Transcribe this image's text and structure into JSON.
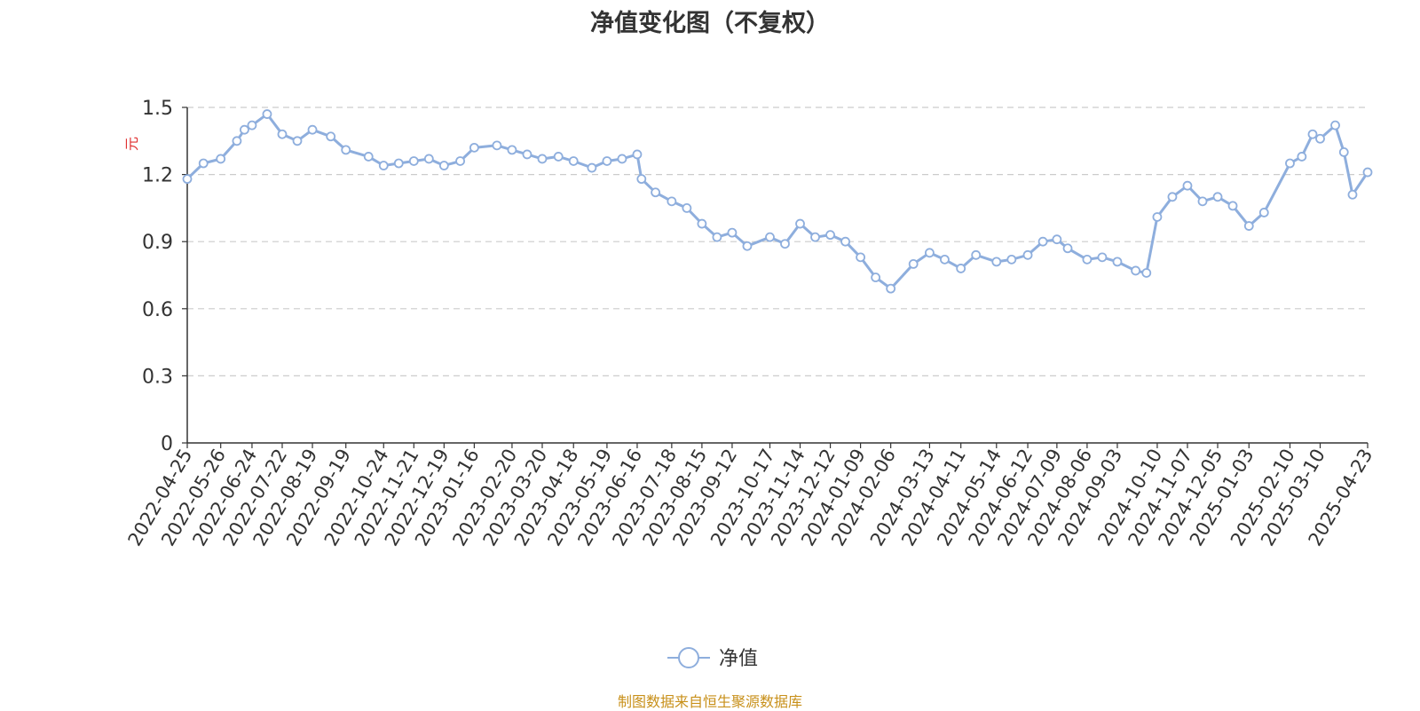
{
  "chart_data": {
    "type": "line",
    "title": "净值变化图（不复权）",
    "ylabel": "元",
    "xlabel": "",
    "ylim": [
      0,
      1.5
    ],
    "yticks": [
      "0",
      "0.3",
      "0.6",
      "0.9",
      "1.2",
      "1.5"
    ],
    "grid": true,
    "legend_position": "bottom-center",
    "x_tick_labels": [
      "2022-04-25",
      "2022-05-26",
      "2022-06-24",
      "2022-07-22",
      "2022-08-19",
      "2022-09-19",
      "2022-10-24",
      "2022-11-21",
      "2022-12-19",
      "2023-01-16",
      "2023-02-20",
      "2023-03-20",
      "2023-04-18",
      "2023-05-19",
      "2023-06-16",
      "2023-07-18",
      "2023-08-15",
      "2023-09-12",
      "2023-10-17",
      "2023-11-14",
      "2023-12-12",
      "2024-01-09",
      "2024-02-06",
      "2024-03-13",
      "2024-04-11",
      "2024-05-14",
      "2024-06-12",
      "2024-07-09",
      "2024-08-06",
      "2024-09-03",
      "2024-10-10",
      "2024-11-07",
      "2024-12-05",
      "2025-01-03",
      "2025-02-10",
      "2025-03-10",
      "2025-04-23"
    ],
    "series": [
      {
        "name": "净值",
        "color": "#8eaedd",
        "x": [
          "2022-04-25",
          "2022-05-10",
          "2022-05-26",
          "2022-06-10",
          "2022-06-17",
          "2022-06-24",
          "2022-07-08",
          "2022-07-22",
          "2022-08-05",
          "2022-08-19",
          "2022-09-05",
          "2022-09-19",
          "2022-10-10",
          "2022-10-24",
          "2022-11-07",
          "2022-11-21",
          "2022-12-05",
          "2022-12-19",
          "2023-01-03",
          "2023-01-16",
          "2023-02-06",
          "2023-02-20",
          "2023-03-06",
          "2023-03-20",
          "2023-04-04",
          "2023-04-18",
          "2023-05-05",
          "2023-05-19",
          "2023-06-02",
          "2023-06-16",
          "2023-06-20",
          "2023-07-03",
          "2023-07-18",
          "2023-08-01",
          "2023-08-15",
          "2023-08-29",
          "2023-09-12",
          "2023-09-26",
          "2023-10-17",
          "2023-10-31",
          "2023-11-14",
          "2023-11-28",
          "2023-12-12",
          "2023-12-26",
          "2024-01-09",
          "2024-01-23",
          "2024-02-06",
          "2024-02-27",
          "2024-03-13",
          "2024-03-27",
          "2024-04-11",
          "2024-04-25",
          "2024-05-14",
          "2024-05-28",
          "2024-06-12",
          "2024-06-26",
          "2024-07-09",
          "2024-07-19",
          "2024-08-06",
          "2024-08-20",
          "2024-09-03",
          "2024-09-20",
          "2024-09-30",
          "2024-10-10",
          "2024-10-24",
          "2024-11-07",
          "2024-11-21",
          "2024-12-05",
          "2024-12-19",
          "2025-01-03",
          "2025-01-17",
          "2025-02-10",
          "2025-02-21",
          "2025-03-03",
          "2025-03-10",
          "2025-03-24",
          "2025-04-01",
          "2025-04-09",
          "2025-04-23"
        ],
        "values": [
          1.18,
          1.25,
          1.27,
          1.35,
          1.4,
          1.42,
          1.47,
          1.38,
          1.35,
          1.4,
          1.37,
          1.31,
          1.28,
          1.24,
          1.25,
          1.26,
          1.27,
          1.24,
          1.26,
          1.32,
          1.33,
          1.31,
          1.29,
          1.27,
          1.28,
          1.26,
          1.23,
          1.26,
          1.27,
          1.29,
          1.18,
          1.12,
          1.08,
          1.05,
          0.98,
          0.92,
          0.94,
          0.88,
          0.92,
          0.89,
          0.98,
          0.92,
          0.93,
          0.9,
          0.83,
          0.74,
          0.69,
          0.8,
          0.85,
          0.82,
          0.78,
          0.84,
          0.81,
          0.82,
          0.84,
          0.9,
          0.91,
          0.87,
          0.82,
          0.83,
          0.81,
          0.77,
          0.76,
          1.01,
          1.1,
          1.15,
          1.08,
          1.1,
          1.06,
          0.97,
          1.03,
          1.25,
          1.28,
          1.38,
          1.36,
          1.42,
          1.3,
          1.11,
          1.21
        ]
      }
    ]
  },
  "footer": {
    "source": "制图数据来自恒生聚源数据库"
  }
}
